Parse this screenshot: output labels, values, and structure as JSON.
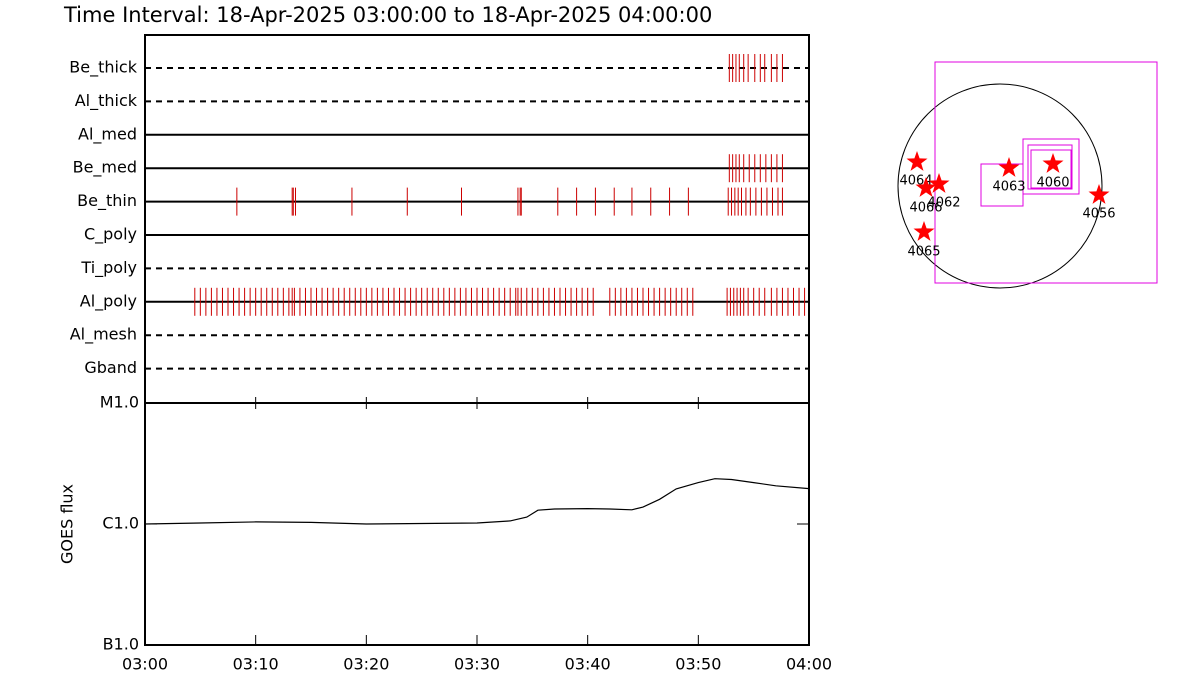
{
  "title": "Time Interval: 18-Apr-2025 03:00:00 to 18-Apr-2025 04:00:00",
  "chart_data": [
    {
      "type": "event",
      "xlim": [
        0,
        60
      ],
      "color": "#cc0000",
      "rows": [
        {
          "name": "Be_thick",
          "line_style": "dashed",
          "times": [
            52.8,
            53.1,
            53.4,
            53.7,
            54.1,
            54.5,
            55.1,
            55.6,
            56.0,
            56.6,
            57.1,
            57.6
          ]
        },
        {
          "name": "Al_thick",
          "line_style": "dashed",
          "times": []
        },
        {
          "name": "Al_med",
          "line_style": "solid",
          "times": []
        },
        {
          "name": "Be_med",
          "line_style": "solid",
          "times": [
            52.8,
            53.1,
            53.4,
            53.7,
            54.1,
            54.6,
            55.1,
            55.6,
            56.1,
            56.6,
            57.1,
            57.6
          ]
        },
        {
          "name": "Be_thin",
          "line_style": "solid",
          "times": [
            8.3,
            13.3,
            13.4,
            13.6,
            18.7,
            23.7,
            28.6,
            33.7,
            33.9,
            34.0,
            37.3,
            39.0,
            40.7,
            42.4,
            44.0,
            45.7,
            47.4,
            49.1,
            52.7,
            53.0,
            53.3,
            53.6,
            53.9,
            54.3,
            54.7,
            55.2,
            55.7,
            56.2,
            56.7,
            57.2,
            57.6
          ]
        },
        {
          "name": "C_poly",
          "line_style": "solid",
          "times": []
        },
        {
          "name": "Ti_poly",
          "line_style": "dashed",
          "times": []
        },
        {
          "name": "Al_poly",
          "line_style": "solid",
          "times": [
            4.5,
            5.0,
            5.5,
            6.0,
            6.5,
            7.0,
            7.5,
            8.0,
            8.5,
            9.0,
            9.5,
            10.0,
            10.5,
            11.0,
            11.5,
            12.0,
            12.5,
            13.0,
            13.3,
            13.5,
            14.0,
            14.5,
            15.0,
            15.5,
            16.0,
            16.5,
            17.0,
            17.5,
            18.0,
            18.5,
            19.0,
            19.5,
            20.0,
            20.5,
            21.0,
            21.5,
            22.0,
            22.5,
            23.0,
            23.5,
            24.0,
            24.5,
            25.0,
            25.5,
            26.0,
            26.5,
            27.0,
            27.5,
            28.0,
            28.5,
            29.0,
            29.5,
            30.0,
            30.5,
            31.0,
            31.5,
            32.0,
            32.5,
            33.0,
            33.5,
            33.7,
            34.0,
            34.5,
            35.0,
            35.5,
            36.0,
            36.5,
            37.0,
            37.5,
            38.0,
            38.5,
            39.0,
            39.5,
            40.0,
            40.5,
            42.0,
            42.5,
            43.0,
            43.5,
            44.0,
            44.5,
            45.0,
            45.5,
            46.0,
            46.5,
            47.0,
            47.5,
            48.0,
            48.5,
            49.0,
            49.5,
            52.6,
            52.9,
            53.2,
            53.5,
            53.8,
            54.1,
            54.5,
            55.0,
            55.5,
            56.0,
            56.6,
            57.1,
            57.6,
            58.1,
            58.6,
            59.1,
            59.6
          ]
        },
        {
          "name": "Al_mesh",
          "line_style": "dashed",
          "times": []
        },
        {
          "name": "Gband",
          "line_style": "dashed",
          "times": []
        }
      ]
    },
    {
      "type": "line",
      "ylabel": "GOES flux",
      "log_scale": true,
      "color": "#000000",
      "xlim": [
        0,
        60
      ],
      "xticks": [
        {
          "value": 0,
          "label": "03:00"
        },
        {
          "value": 10,
          "label": "03:10"
        },
        {
          "value": 20,
          "label": "03:20"
        },
        {
          "value": 30,
          "label": "03:30"
        },
        {
          "value": 40,
          "label": "03:40"
        },
        {
          "value": 50,
          "label": "03:50"
        },
        {
          "value": 60,
          "label": "04:00"
        }
      ],
      "ylim": [
        1e-07,
        1e-05
      ],
      "yticks": [
        {
          "value": 1e-07,
          "label": "B1.0"
        },
        {
          "value": 1e-06,
          "label": "C1.0"
        },
        {
          "value": 1e-05,
          "label": "M1.0"
        }
      ],
      "x": [
        0,
        5,
        10,
        15,
        20,
        25,
        30,
        33,
        34.5,
        35.5,
        37,
        40,
        42,
        44,
        45,
        46.5,
        48,
        50,
        51.5,
        53,
        55,
        57,
        60
      ],
      "values": [
        1e-06,
        1.02e-06,
        1.04e-06,
        1.03e-06,
        1e-06,
        1.01e-06,
        1.02e-06,
        1.06e-06,
        1.14e-06,
        1.3e-06,
        1.33e-06,
        1.34e-06,
        1.33e-06,
        1.31e-06,
        1.38e-06,
        1.6e-06,
        1.95e-06,
        2.2e-06,
        2.37e-06,
        2.33e-06,
        2.2e-06,
        2.07e-06,
        1.96e-06
      ]
    }
  ],
  "map": {
    "regions": [
      "4064",
      "4066",
      "4062",
      "4065",
      "4063",
      "4060",
      "4056"
    ]
  }
}
